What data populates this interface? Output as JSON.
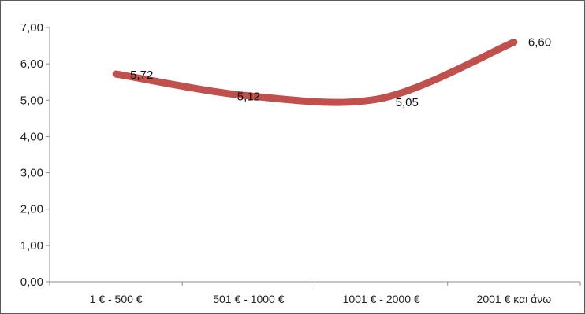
{
  "chart_data": {
    "type": "line",
    "categories": [
      "1 € - 500 €",
      "501 € - 1000 €",
      "1001 € - 2000 €",
      "2001 € και άνω"
    ],
    "series": [
      {
        "values": [
          5.72,
          5.12,
          5.05,
          6.6
        ],
        "color": "#c0504d"
      }
    ],
    "data_labels": [
      "5,72",
      "5,12",
      "5,05",
      "6,60"
    ],
    "ylim": [
      0,
      7
    ],
    "yticks": [
      0,
      1,
      2,
      3,
      4,
      5,
      6,
      7
    ],
    "ytick_labels": [
      "0,00",
      "1,00",
      "2,00",
      "3,00",
      "4,00",
      "5,00",
      "6,00",
      "7,00"
    ],
    "grid": false,
    "legend": "none",
    "title": "",
    "xlabel": "",
    "ylabel": ""
  }
}
